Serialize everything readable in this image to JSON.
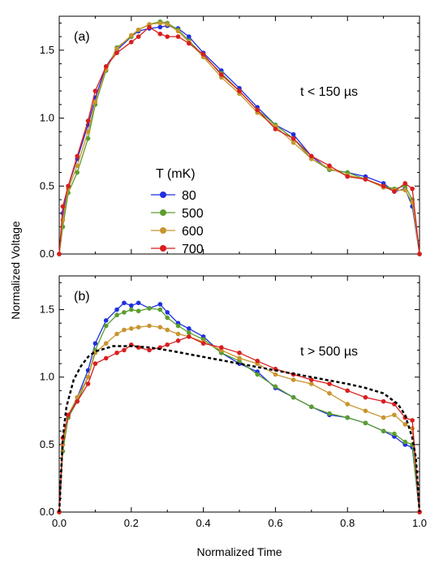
{
  "chart_data": [
    {
      "type": "line",
      "panel_label": "(a)",
      "annotation": "t < 150 µs",
      "xlim": [
        0,
        1
      ],
      "ylim": [
        0,
        1.75
      ],
      "xticks": [
        0.0,
        0.2,
        0.4,
        0.6,
        0.8,
        1.0
      ],
      "xtick_labels": [],
      "yticks": [
        0.0,
        0.5,
        1.0,
        1.5
      ],
      "ytick_labels": [
        "0.0",
        "0.5",
        "1.0",
        "1.5"
      ],
      "legend": {
        "title": "T (mK)",
        "position": "center-left"
      },
      "series": [
        {
          "name": "80",
          "color": "#1f2fe0",
          "x": [
            0,
            0.01,
            0.025,
            0.05,
            0.08,
            0.1,
            0.13,
            0.16,
            0.2,
            0.22,
            0.25,
            0.28,
            0.3,
            0.33,
            0.36,
            0.4,
            0.45,
            0.5,
            0.55,
            0.6,
            0.65,
            0.7,
            0.75,
            0.8,
            0.85,
            0.9,
            0.93,
            0.96,
            0.98,
            1.0
          ],
          "y": [
            0,
            0.3,
            0.5,
            0.7,
            0.95,
            1.15,
            1.38,
            1.5,
            1.6,
            1.64,
            1.66,
            1.67,
            1.68,
            1.66,
            1.6,
            1.48,
            1.35,
            1.22,
            1.08,
            0.95,
            0.88,
            0.72,
            0.62,
            0.6,
            0.57,
            0.52,
            0.46,
            0.48,
            0.35,
            0
          ]
        },
        {
          "name": "500",
          "color": "#5a9e2e",
          "x": [
            0,
            0.01,
            0.025,
            0.05,
            0.08,
            0.1,
            0.13,
            0.16,
            0.2,
            0.22,
            0.25,
            0.28,
            0.3,
            0.33,
            0.36,
            0.4,
            0.45,
            0.5,
            0.55,
            0.6,
            0.65,
            0.7,
            0.75,
            0.8,
            0.85,
            0.9,
            0.93,
            0.96,
            0.98,
            1.0
          ],
          "y": [
            0,
            0.2,
            0.45,
            0.6,
            0.85,
            1.1,
            1.35,
            1.52,
            1.6,
            1.65,
            1.69,
            1.71,
            1.7,
            1.65,
            1.57,
            1.46,
            1.33,
            1.2,
            1.06,
            0.95,
            0.85,
            0.7,
            0.62,
            0.6,
            0.55,
            0.5,
            0.48,
            0.5,
            0.4,
            0
          ]
        },
        {
          "name": "600",
          "color": "#c8952e",
          "x": [
            0,
            0.01,
            0.025,
            0.05,
            0.08,
            0.1,
            0.13,
            0.16,
            0.2,
            0.22,
            0.25,
            0.28,
            0.3,
            0.33,
            0.36,
            0.4,
            0.45,
            0.5,
            0.55,
            0.6,
            0.65,
            0.7,
            0.75,
            0.8,
            0.85,
            0.9,
            0.93,
            0.96,
            0.98,
            1.0
          ],
          "y": [
            0,
            0.25,
            0.48,
            0.65,
            0.9,
            1.12,
            1.36,
            1.51,
            1.61,
            1.65,
            1.69,
            1.7,
            1.69,
            1.64,
            1.56,
            1.45,
            1.3,
            1.18,
            1.04,
            0.94,
            0.82,
            0.7,
            0.63,
            0.58,
            0.55,
            0.49,
            0.47,
            0.47,
            0.38,
            0
          ]
        },
        {
          "name": "700",
          "color": "#d81e1e",
          "x": [
            0,
            0.01,
            0.025,
            0.05,
            0.08,
            0.1,
            0.13,
            0.16,
            0.2,
            0.22,
            0.25,
            0.28,
            0.3,
            0.33,
            0.36,
            0.4,
            0.45,
            0.5,
            0.55,
            0.6,
            0.65,
            0.7,
            0.75,
            0.8,
            0.85,
            0.9,
            0.93,
            0.96,
            0.98,
            1.0
          ],
          "y": [
            0,
            0.35,
            0.5,
            0.72,
            0.98,
            1.2,
            1.38,
            1.48,
            1.56,
            1.6,
            1.67,
            1.62,
            1.6,
            1.6,
            1.55,
            1.47,
            1.32,
            1.2,
            1.06,
            0.92,
            0.85,
            0.72,
            0.65,
            0.57,
            0.55,
            0.5,
            0.46,
            0.52,
            0.48,
            0
          ]
        }
      ]
    },
    {
      "type": "line",
      "panel_label": "(b)",
      "annotation": "t > 500 µs",
      "xlim": [
        0,
        1
      ],
      "ylim": [
        0,
        1.75
      ],
      "xticks": [
        0.0,
        0.2,
        0.4,
        0.6,
        0.8,
        1.0
      ],
      "xtick_labels": [
        "0.0",
        "0.2",
        "0.4",
        "0.6",
        "0.8",
        "1.0"
      ],
      "yticks": [
        0.0,
        0.5,
        1.0,
        1.5
      ],
      "ytick_labels": [
        "0.0",
        "0.5",
        "1.0",
        "1.5"
      ],
      "series": [
        {
          "name": "80",
          "color": "#1f2fe0",
          "x": [
            0,
            0.01,
            0.025,
            0.05,
            0.08,
            0.1,
            0.13,
            0.16,
            0.18,
            0.2,
            0.22,
            0.25,
            0.28,
            0.3,
            0.33,
            0.36,
            0.4,
            0.45,
            0.5,
            0.55,
            0.6,
            0.65,
            0.7,
            0.75,
            0.8,
            0.85,
            0.9,
            0.93,
            0.96,
            0.98,
            1.0
          ],
          "y": [
            0,
            0.5,
            0.7,
            0.85,
            1.05,
            1.25,
            1.42,
            1.5,
            1.55,
            1.53,
            1.55,
            1.51,
            1.54,
            1.48,
            1.4,
            1.36,
            1.3,
            1.18,
            1.1,
            1.04,
            0.92,
            0.85,
            0.78,
            0.72,
            0.7,
            0.66,
            0.6,
            0.56,
            0.5,
            0.48,
            0
          ]
        },
        {
          "name": "500",
          "color": "#5a9e2e",
          "x": [
            0,
            0.01,
            0.025,
            0.05,
            0.08,
            0.1,
            0.13,
            0.16,
            0.18,
            0.2,
            0.22,
            0.25,
            0.28,
            0.3,
            0.33,
            0.36,
            0.4,
            0.45,
            0.5,
            0.55,
            0.6,
            0.65,
            0.7,
            0.75,
            0.8,
            0.85,
            0.9,
            0.93,
            0.96,
            0.98,
            1.0
          ],
          "y": [
            0,
            0.45,
            0.7,
            0.82,
            1.0,
            1.2,
            1.38,
            1.46,
            1.48,
            1.5,
            1.49,
            1.51,
            1.5,
            1.44,
            1.38,
            1.33,
            1.28,
            1.18,
            1.12,
            1.02,
            0.93,
            0.85,
            0.78,
            0.73,
            0.7,
            0.66,
            0.6,
            0.58,
            0.52,
            0.5,
            0
          ]
        },
        {
          "name": "600",
          "color": "#c8952e",
          "x": [
            0,
            0.01,
            0.025,
            0.05,
            0.08,
            0.1,
            0.13,
            0.16,
            0.18,
            0.2,
            0.22,
            0.25,
            0.28,
            0.3,
            0.33,
            0.36,
            0.4,
            0.45,
            0.5,
            0.55,
            0.6,
            0.65,
            0.7,
            0.75,
            0.8,
            0.85,
            0.9,
            0.93,
            0.96,
            0.98,
            1.0
          ],
          "y": [
            0,
            0.5,
            0.72,
            0.85,
            1.0,
            1.18,
            1.25,
            1.32,
            1.35,
            1.36,
            1.37,
            1.38,
            1.37,
            1.35,
            1.32,
            1.3,
            1.26,
            1.2,
            1.14,
            1.1,
            1.02,
            0.98,
            0.95,
            0.88,
            0.8,
            0.75,
            0.7,
            0.72,
            0.65,
            0.62,
            0
          ]
        },
        {
          "name": "700",
          "color": "#d81e1e",
          "x": [
            0,
            0.01,
            0.025,
            0.05,
            0.08,
            0.1,
            0.13,
            0.16,
            0.18,
            0.2,
            0.22,
            0.25,
            0.28,
            0.3,
            0.33,
            0.36,
            0.4,
            0.45,
            0.5,
            0.55,
            0.6,
            0.65,
            0.7,
            0.75,
            0.8,
            0.85,
            0.9,
            0.93,
            0.96,
            0.98,
            1.0
          ],
          "y": [
            0,
            0.55,
            0.72,
            0.82,
            0.95,
            1.1,
            1.14,
            1.18,
            1.2,
            1.24,
            1.22,
            1.2,
            1.22,
            1.24,
            1.27,
            1.3,
            1.25,
            1.22,
            1.18,
            1.12,
            1.06,
            1.02,
            0.98,
            0.95,
            0.9,
            0.85,
            0.82,
            0.8,
            0.7,
            0.68,
            0
          ]
        },
        {
          "name": "",
          "color": "#000000",
          "style": "dashed",
          "x": [
            0,
            0.01,
            0.02,
            0.04,
            0.06,
            0.08,
            0.1,
            0.15,
            0.2,
            0.25,
            0.3,
            0.4,
            0.5,
            0.6,
            0.7,
            0.8,
            0.85,
            0.9,
            0.94,
            0.96,
            0.98,
            0.99,
            1.0
          ],
          "y": [
            0,
            0.55,
            0.78,
            0.98,
            1.08,
            1.15,
            1.19,
            1.23,
            1.23,
            1.22,
            1.2,
            1.15,
            1.1,
            1.05,
            1.0,
            0.95,
            0.92,
            0.88,
            0.8,
            0.72,
            0.55,
            0.4,
            0
          ]
        }
      ]
    }
  ],
  "axes": {
    "ylabel": "Normalized Voltage",
    "xlabel": "Normalized Time"
  }
}
